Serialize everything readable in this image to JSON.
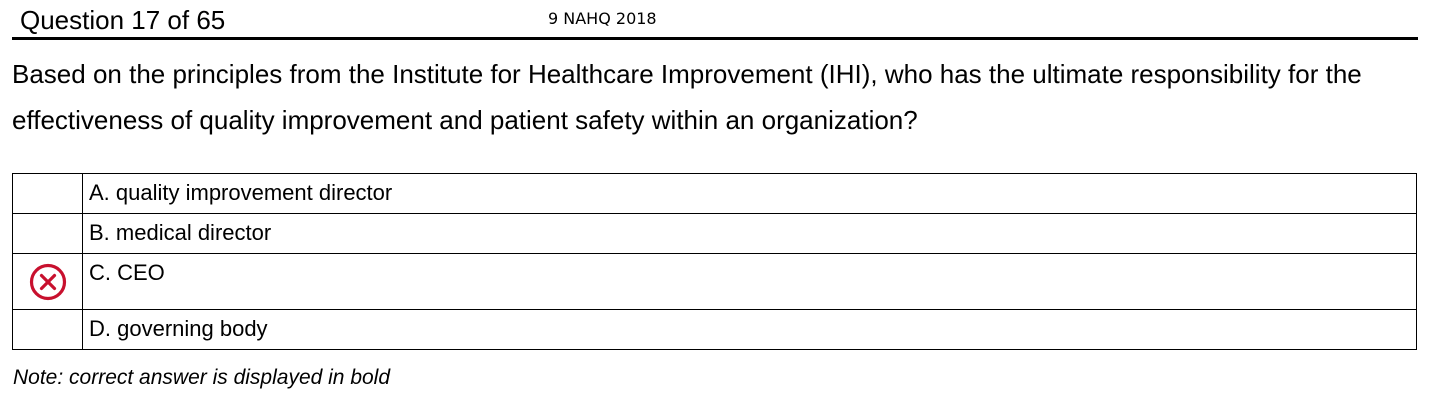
{
  "header": {
    "question_number": "Question 17 of 65",
    "source": "9 NAHQ 2018"
  },
  "question": {
    "text": "Based on the principles from the Institute for Healthcare Improvement (IHI), who has the ultimate responsibility for the effectiveness of quality improvement and patient safety within an organization?"
  },
  "answers": [
    {
      "text": "A. quality improvement director",
      "mark": ""
    },
    {
      "text": "B. medical director",
      "mark": ""
    },
    {
      "text": "C. CEO",
      "mark": "incorrect-x-icon"
    },
    {
      "text": "D. governing body",
      "mark": ""
    }
  ],
  "colors": {
    "incorrect_mark": "#c8102e"
  },
  "note": "Note: correct answer is displayed in bold"
}
